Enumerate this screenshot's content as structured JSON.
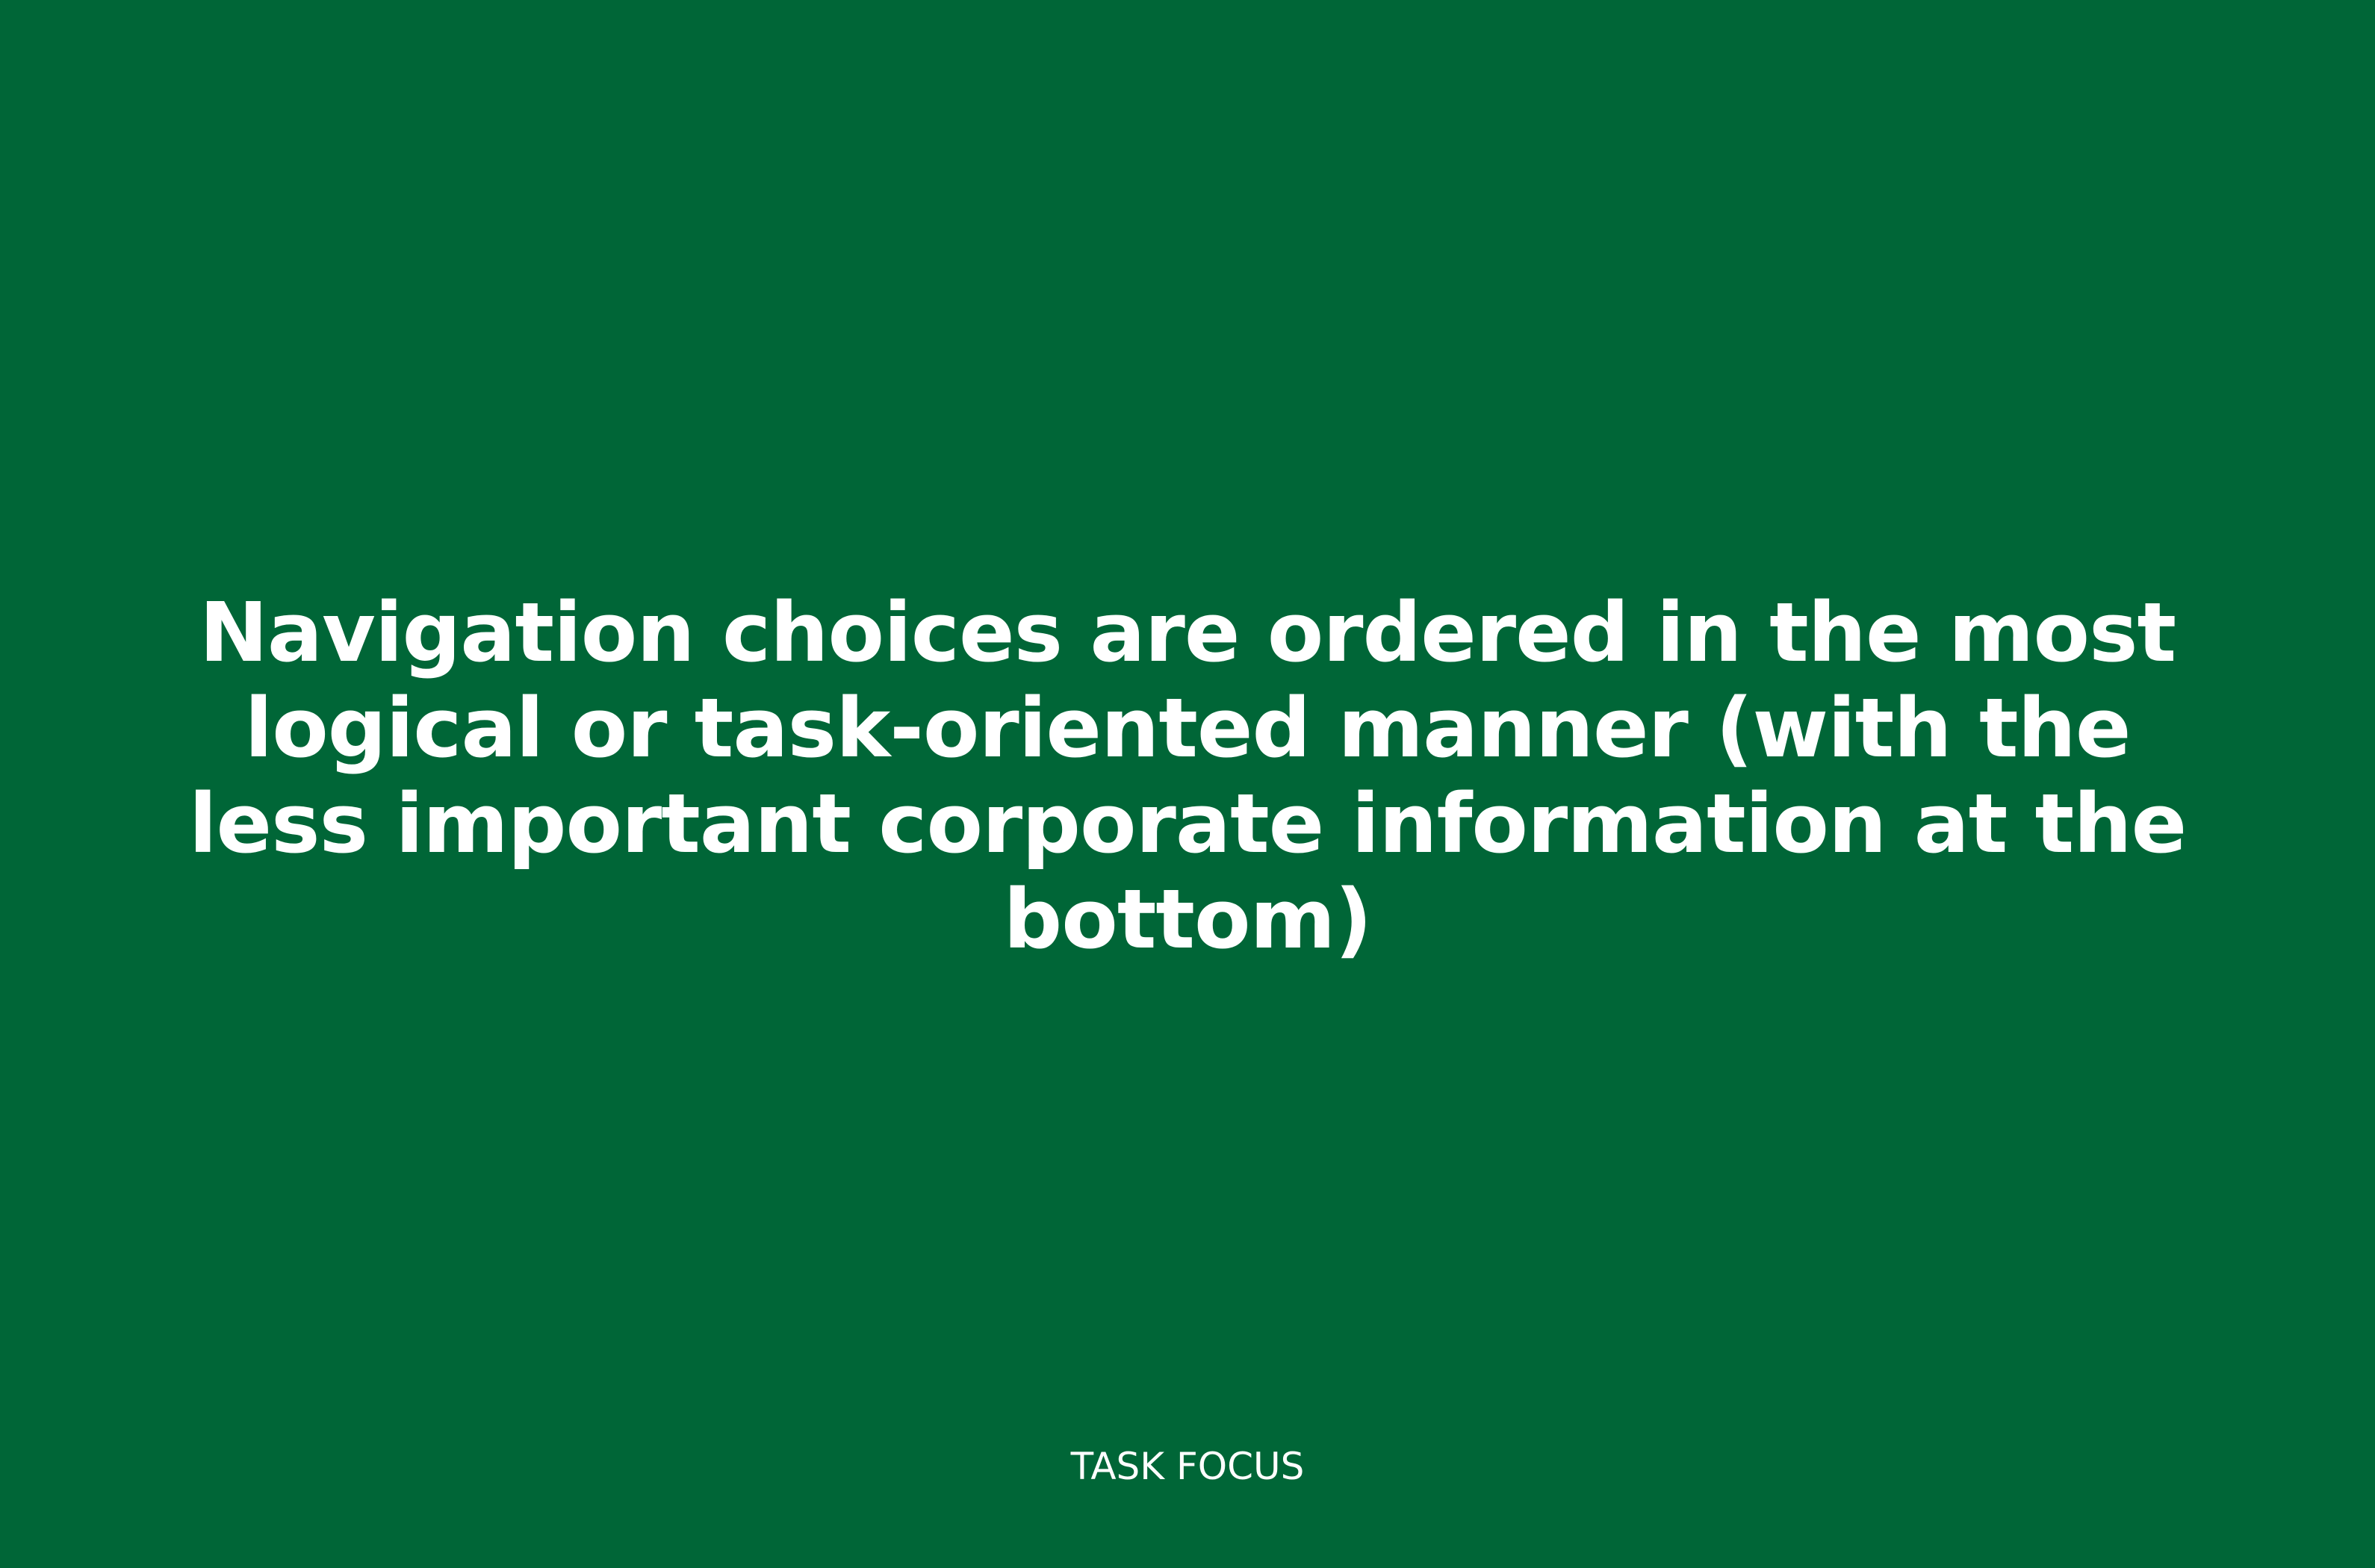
{
  "slide": {
    "statement": "Navigation choices are ordered in the most logical or task-oriented manner (with the less important corporate information at the bottom)",
    "category": "TASK FOCUS"
  },
  "colors": {
    "background": "#006637",
    "text": "#ffffff"
  }
}
